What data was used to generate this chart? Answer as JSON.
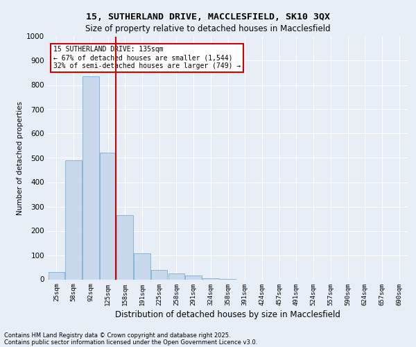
{
  "title_line1": "15, SUTHERLAND DRIVE, MACCLESFIELD, SK10 3QX",
  "title_line2": "Size of property relative to detached houses in Macclesfield",
  "xlabel": "Distribution of detached houses by size in Macclesfield",
  "ylabel": "Number of detached properties",
  "footer_line1": "Contains HM Land Registry data © Crown copyright and database right 2025.",
  "footer_line2": "Contains public sector information licensed under the Open Government Licence v3.0.",
  "categories": [
    "25sqm",
    "58sqm",
    "92sqm",
    "125sqm",
    "158sqm",
    "191sqm",
    "225sqm",
    "258sqm",
    "291sqm",
    "324sqm",
    "358sqm",
    "391sqm",
    "424sqm",
    "457sqm",
    "491sqm",
    "524sqm",
    "557sqm",
    "590sqm",
    "624sqm",
    "657sqm",
    "690sqm"
  ],
  "values": [
    30,
    490,
    835,
    520,
    265,
    107,
    40,
    25,
    15,
    5,
    2,
    0,
    0,
    0,
    0,
    0,
    0,
    0,
    0,
    0,
    0
  ],
  "bar_color": "#c9d9ec",
  "bar_edge_color": "#7bafd4",
  "red_line_index": 3,
  "ylim": [
    0,
    1000
  ],
  "yticks": [
    0,
    100,
    200,
    300,
    400,
    500,
    600,
    700,
    800,
    900,
    1000
  ],
  "annotation_line1": "15 SUTHERLAND DRIVE: 135sqm",
  "annotation_line2": "← 67% of detached houses are smaller (1,544)",
  "annotation_line3": "32% of semi-detached houses are larger (749) →",
  "bg_color": "#e8eef5",
  "grid_color": "#ffffff"
}
